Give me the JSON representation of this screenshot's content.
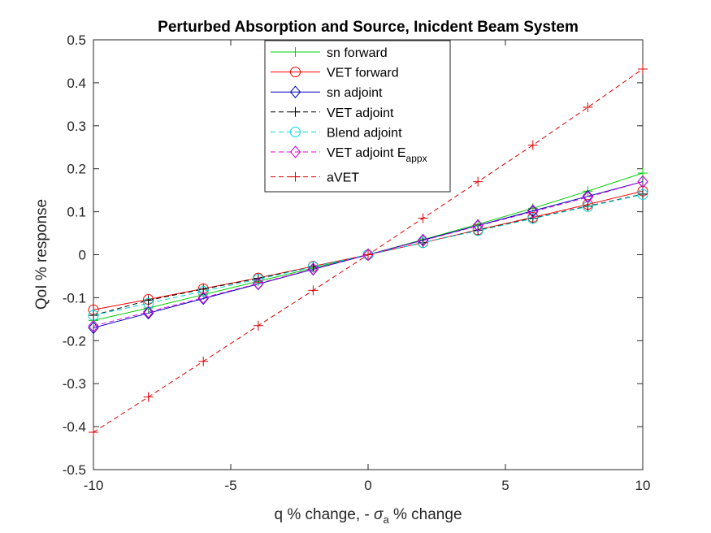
{
  "chart_data": {
    "type": "line",
    "title": "Perturbed Absorption and Source, Inicdent Beam System",
    "xlabel": {
      "prefix": "q % change, - ",
      "symbol": "σ",
      "subscript": "a",
      "suffix": " % change"
    },
    "ylabel": "QoI % response",
    "xlim": [
      -10,
      10
    ],
    "ylim": [
      -0.5,
      0.5
    ],
    "xticks": [
      -10,
      -5,
      0,
      5,
      10
    ],
    "xtick_labels": [
      "-10",
      "-5",
      "0",
      "5",
      "10"
    ],
    "yticks": [
      -0.5,
      -0.4,
      -0.3,
      -0.2,
      -0.1,
      0,
      0.1,
      0.2,
      0.3,
      0.4,
      0.5
    ],
    "ytick_labels": [
      "-0.5",
      "-0.4",
      "-0.3",
      "-0.2",
      "-0.1",
      "0",
      "0.1",
      "0.2",
      "0.3",
      "0.4",
      "0.5"
    ],
    "grid": false,
    "legend_position": "top-center",
    "x": [
      -10,
      -8,
      -6,
      -4,
      -2,
      0,
      2,
      4,
      6,
      8,
      10
    ],
    "series": [
      {
        "name": "sn forward",
        "color": "#00cc00",
        "dash": "solid",
        "marker": "plus",
        "values": [
          -0.153,
          -0.124,
          -0.093,
          -0.062,
          -0.031,
          0,
          0.035,
          0.071,
          0.108,
          0.148,
          0.19
        ]
      },
      {
        "name": "VET forward",
        "color": "#ff0000",
        "dash": "solid",
        "marker": "circle",
        "values": [
          -0.128,
          -0.104,
          -0.079,
          -0.054,
          -0.027,
          0,
          0.028,
          0.058,
          0.087,
          0.117,
          0.148
        ]
      },
      {
        "name": "sn adjoint",
        "color": "#0000bb",
        "dash": "solid",
        "marker": "diamond",
        "values": [
          -0.17,
          -0.136,
          -0.102,
          -0.068,
          -0.034,
          0,
          0.034,
          0.068,
          0.102,
          0.136,
          0.17
        ]
      },
      {
        "name": "VET adjoint",
        "color": "#000000",
        "dash": "dashed",
        "marker": "plus",
        "values": [
          -0.141,
          -0.106,
          -0.08,
          -0.055,
          -0.028,
          0,
          0.028,
          0.057,
          0.085,
          0.113,
          0.141
        ]
      },
      {
        "name": "Blend adjoint",
        "color": "#00d8d8",
        "dash": "dashed",
        "marker": "circle",
        "values": [
          -0.141,
          -0.113,
          -0.085,
          -0.057,
          -0.028,
          0,
          0.028,
          0.056,
          0.084,
          0.112,
          0.14
        ]
      },
      {
        "name": "VET adjoint E",
        "name_subscript": "appx",
        "color": "#dd00dd",
        "dash": "dashed",
        "marker": "diamond",
        "values": [
          -0.166,
          -0.133,
          -0.1,
          -0.067,
          -0.033,
          0,
          0.033,
          0.067,
          0.1,
          0.134,
          0.17
        ]
      },
      {
        "name": "aVET",
        "color": "#dd0000",
        "dash": "dashed",
        "marker": "plus",
        "values": [
          -0.413,
          -0.331,
          -0.248,
          -0.165,
          -0.083,
          0,
          0.085,
          0.17,
          0.255,
          0.343,
          0.432
        ]
      }
    ]
  }
}
